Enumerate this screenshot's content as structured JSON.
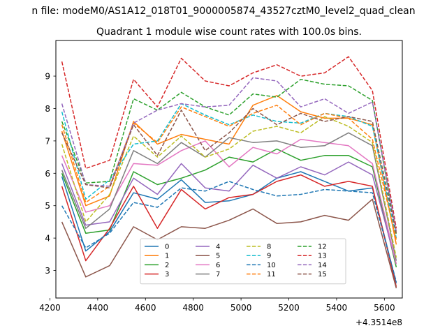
{
  "chart_data": {
    "type": "line",
    "suptitle": "n file: modeM0/AS1A12_018T01_9000005874_43527cztM0_level2_quad_clean",
    "title": "Quadrant 1 module wise count rates with 100.0s bins.",
    "xlabel": "",
    "ylabel": "",
    "x_offset_label": "+4.3514e8",
    "x": [
      4250,
      4350,
      4450,
      4550,
      4650,
      4750,
      4850,
      4950,
      5050,
      5150,
      5250,
      5350,
      5450,
      5550,
      5650
    ],
    "xlim": [
      4225,
      5675
    ],
    "ylim": [
      2.15,
      10.1
    ],
    "xticks": [
      4200,
      4400,
      4600,
      4800,
      5000,
      5200,
      5400,
      5600
    ],
    "xtick_labels": [
      "4200",
      "4400",
      "4600",
      "4800",
      "5000",
      "5200",
      "5400",
      "5600"
    ],
    "yticks": [
      3,
      4,
      5,
      6,
      7,
      8,
      9
    ],
    "ytick_labels": [
      "3",
      "4",
      "5",
      "6",
      "7",
      "8",
      "9"
    ],
    "grid": false,
    "legend_position": "lower-center",
    "legend_columns": 4,
    "series": [
      {
        "name": "0",
        "color": "#1f77b4",
        "dash": "solid",
        "values": [
          5.9,
          3.6,
          4.2,
          5.4,
          5.2,
          5.8,
          5.1,
          5.15,
          5.35,
          5.85,
          6.05,
          5.75,
          5.45,
          5.55,
          2.6
        ]
      },
      {
        "name": "1",
        "color": "#ff7f0e",
        "dash": "solid",
        "values": [
          7.3,
          5.0,
          5.3,
          7.6,
          6.9,
          7.2,
          7.05,
          6.9,
          8.1,
          8.4,
          7.9,
          7.7,
          7.7,
          7.5,
          3.8
        ]
      },
      {
        "name": "2",
        "color": "#2ca02c",
        "dash": "solid",
        "values": [
          6.0,
          4.15,
          4.25,
          6.05,
          5.65,
          5.85,
          6.1,
          6.5,
          6.35,
          6.75,
          6.4,
          6.55,
          6.55,
          6.2,
          3.1
        ]
      },
      {
        "name": "3",
        "color": "#d62728",
        "dash": "solid",
        "values": [
          5.6,
          3.3,
          4.3,
          5.6,
          4.3,
          5.5,
          4.9,
          5.25,
          5.35,
          5.75,
          5.95,
          5.6,
          5.75,
          5.6,
          2.5
        ]
      },
      {
        "name": "4",
        "color": "#9467bd",
        "dash": "solid",
        "values": [
          6.3,
          4.4,
          4.5,
          5.85,
          5.35,
          6.3,
          5.55,
          5.45,
          6.25,
          5.85,
          6.2,
          5.95,
          6.35,
          5.95,
          3.2
        ]
      },
      {
        "name": "5",
        "color": "#8c564b",
        "dash": "solid",
        "values": [
          4.5,
          2.8,
          3.15,
          4.35,
          3.95,
          4.35,
          4.3,
          4.55,
          4.9,
          4.45,
          4.5,
          4.7,
          4.55,
          5.2,
          2.45
        ]
      },
      {
        "name": "6",
        "color": "#e377c2",
        "dash": "solid",
        "values": [
          6.55,
          4.8,
          5.0,
          6.3,
          6.25,
          6.7,
          7.0,
          6.2,
          6.8,
          6.6,
          7.05,
          6.95,
          6.85,
          6.3,
          3.2
        ]
      },
      {
        "name": "7",
        "color": "#7f7f7f",
        "dash": "solid",
        "values": [
          6.1,
          4.3,
          4.9,
          6.7,
          6.3,
          6.95,
          6.5,
          7.1,
          6.95,
          7.0,
          6.8,
          6.85,
          7.25,
          6.85,
          3.3
        ]
      },
      {
        "name": "8",
        "color": "#bcbd22",
        "dash": "dashed",
        "values": [
          6.9,
          4.5,
          5.35,
          7.15,
          6.5,
          7.15,
          6.5,
          6.75,
          7.3,
          7.45,
          7.25,
          7.75,
          7.45,
          6.95,
          3.4
        ]
      },
      {
        "name": "9",
        "color": "#17becf",
        "dash": "dashed",
        "values": [
          7.9,
          5.2,
          5.8,
          6.9,
          7.0,
          8.15,
          7.8,
          7.5,
          7.8,
          7.6,
          7.55,
          7.85,
          7.75,
          7.45,
          4.0
        ]
      },
      {
        "name": "10",
        "color": "#1f77b4",
        "dash": "dashed",
        "values": [
          5.0,
          3.7,
          4.15,
          5.1,
          4.95,
          5.55,
          5.45,
          5.75,
          5.5,
          5.3,
          5.35,
          5.5,
          5.45,
          5.4,
          2.65
        ]
      },
      {
        "name": "11",
        "color": "#ff7f0e",
        "dash": "dashed",
        "values": [
          7.5,
          5.1,
          5.6,
          7.55,
          6.95,
          8.05,
          7.75,
          7.45,
          7.85,
          8.1,
          7.5,
          7.85,
          7.7,
          7.05,
          3.95
        ]
      },
      {
        "name": "12",
        "color": "#2ca02c",
        "dash": "dashed",
        "values": [
          7.6,
          5.7,
          5.75,
          8.3,
          7.95,
          8.5,
          8.05,
          7.8,
          8.45,
          8.35,
          8.9,
          8.75,
          8.7,
          8.25,
          4.1
        ]
      },
      {
        "name": "13",
        "color": "#d62728",
        "dash": "dashed",
        "values": [
          9.45,
          6.15,
          6.4,
          8.9,
          8.05,
          9.55,
          8.85,
          8.7,
          9.1,
          9.35,
          9.0,
          9.1,
          9.6,
          8.55,
          4.3
        ]
      },
      {
        "name": "14",
        "color": "#9467bd",
        "dash": "dashed",
        "values": [
          8.15,
          5.65,
          5.6,
          7.55,
          7.95,
          8.15,
          8.05,
          8.1,
          8.95,
          8.85,
          8.05,
          8.3,
          7.85,
          8.2,
          4.2
        ]
      },
      {
        "name": "15",
        "color": "#8c564b",
        "dash": "dashed",
        "values": [
          7.25,
          5.65,
          5.55,
          7.5,
          6.55,
          7.95,
          6.7,
          7.25,
          8.0,
          7.5,
          7.85,
          7.6,
          7.75,
          7.6,
          4.15
        ]
      }
    ]
  }
}
